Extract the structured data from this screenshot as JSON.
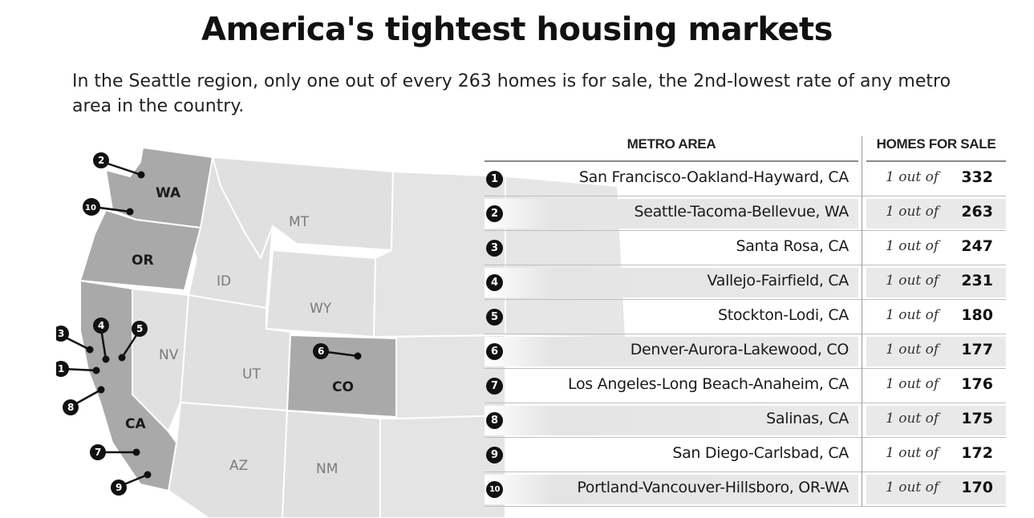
{
  "title": "America's tightest housing markets",
  "subtitle": "In the Seattle region, only one out of every 263 homes is for sale, the 2nd-lowest rate of any metro area in the country.",
  "chart_data": {
    "type": "table",
    "columns": [
      "METRO AREA",
      "HOMES FOR SALE"
    ],
    "ratio_prefix": "1 out of",
    "rows": [
      {
        "rank": "1",
        "metro": "San Francisco-Oakland-Hayward, CA",
        "value": "332"
      },
      {
        "rank": "2",
        "metro": "Seattle-Tacoma-Bellevue, WA",
        "value": "263"
      },
      {
        "rank": "3",
        "metro": "Santa Rosa, CA",
        "value": "247"
      },
      {
        "rank": "4",
        "metro": "Vallejo-Fairfield, CA",
        "value": "231"
      },
      {
        "rank": "5",
        "metro": "Stockton-Lodi, CA",
        "value": "180"
      },
      {
        "rank": "6",
        "metro": "Denver-Aurora-Lakewood, CO",
        "value": "177"
      },
      {
        "rank": "7",
        "metro": "Los Angeles-Long Beach-Anaheim, CA",
        "value": "176"
      },
      {
        "rank": "8",
        "metro": "Salinas, CA",
        "value": "175"
      },
      {
        "rank": "9",
        "metro": "San Diego-Carlsbad, CA",
        "value": "172"
      },
      {
        "rank": "10",
        "metro": "Portland-Vancouver-Hillsboro, OR-WA",
        "value": "170"
      }
    ]
  },
  "map": {
    "highlighted_states": [
      "WA",
      "OR",
      "CA",
      "CO"
    ],
    "other_states": [
      "MT",
      "ID",
      "WY",
      "NV",
      "UT",
      "AZ",
      "NM"
    ],
    "colors": {
      "highlight": "#a9a9a9",
      "base": "#e0e0e0",
      "border": "#ffffff"
    }
  }
}
